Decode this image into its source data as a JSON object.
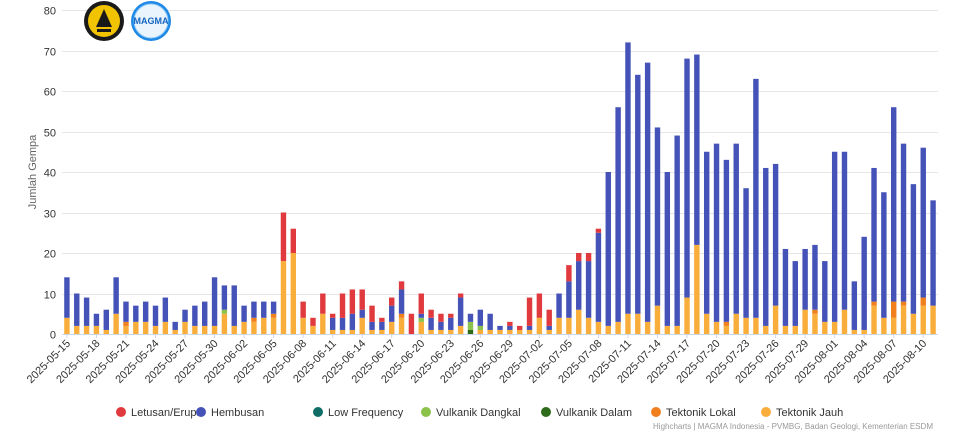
{
  "chart_data": {
    "type": "bar",
    "stacked": true,
    "ylabel": "Jumlah Gempa",
    "ylim": [
      0,
      80
    ],
    "yticks": [
      0,
      10,
      20,
      30,
      40,
      50,
      60,
      70,
      80
    ],
    "grid": true,
    "legend_position": "bottom",
    "logos": [
      "Badan Geologi logo",
      "MAGMA Indonesia logo"
    ],
    "logo_text": "MAGMA",
    "credit": "Highcharts | MAGMA Indonesia - PVMBG, Badan Geologi, Kementerian ESDM",
    "tick_labels": [
      "2025-05-15",
      "2025-05-18",
      "2025-05-21",
      "2025-05-24",
      "2025-05-27",
      "2025-05-30",
      "2025-06-02",
      "2025-06-05",
      "2025-06-08",
      "2025-06-11",
      "2025-06-14",
      "2025-06-17",
      "2025-06-20",
      "2025-06-23",
      "2025-06-26",
      "2025-06-29",
      "2025-07-02",
      "2025-07-05",
      "2025-07-08",
      "2025-07-11",
      "2025-07-14",
      "2025-07-17",
      "2025-07-20",
      "2025-07-23",
      "2025-07-26",
      "2025-07-29",
      "2025-08-01",
      "2025-08-04",
      "2025-08-07",
      "2025-08-10"
    ],
    "categories": [
      "2025-05-15",
      "2025-05-16",
      "2025-05-17",
      "2025-05-18",
      "2025-05-19",
      "2025-05-20",
      "2025-05-21",
      "2025-05-22",
      "2025-05-23",
      "2025-05-24",
      "2025-05-25",
      "2025-05-26",
      "2025-05-27",
      "2025-05-28",
      "2025-05-29",
      "2025-05-30",
      "2025-05-31",
      "2025-06-01",
      "2025-06-02",
      "2025-06-03",
      "2025-06-04",
      "2025-06-05",
      "2025-06-06",
      "2025-06-07",
      "2025-06-08",
      "2025-06-09",
      "2025-06-10",
      "2025-06-11",
      "2025-06-12",
      "2025-06-13",
      "2025-06-14",
      "2025-06-15",
      "2025-06-16",
      "2025-06-17",
      "2025-06-18",
      "2025-06-19",
      "2025-06-20",
      "2025-06-21",
      "2025-06-22",
      "2025-06-23",
      "2025-06-24",
      "2025-06-25",
      "2025-06-26",
      "2025-06-27",
      "2025-06-28",
      "2025-06-29",
      "2025-06-30",
      "2025-07-01",
      "2025-07-02",
      "2025-07-03",
      "2025-07-04",
      "2025-07-05",
      "2025-07-06",
      "2025-07-07",
      "2025-07-08",
      "2025-07-09",
      "2025-07-10",
      "2025-07-11",
      "2025-07-12",
      "2025-07-13",
      "2025-07-14",
      "2025-07-15",
      "2025-07-16",
      "2025-07-17",
      "2025-07-18",
      "2025-07-19",
      "2025-07-20",
      "2025-07-21",
      "2025-07-22",
      "2025-07-23",
      "2025-07-24",
      "2025-07-25",
      "2025-07-26",
      "2025-07-27",
      "2025-07-28",
      "2025-07-29",
      "2025-07-30",
      "2025-07-31",
      "2025-08-01",
      "2025-08-02",
      "2025-08-03",
      "2025-08-04",
      "2025-08-05",
      "2025-08-06",
      "2025-08-07",
      "2025-08-08",
      "2025-08-09",
      "2025-08-10",
      "2025-08-11"
    ],
    "series": [
      {
        "name": "Letusan/Erupsi",
        "color": "#e03a3e",
        "values": [
          0,
          0,
          0,
          0,
          0,
          0,
          0,
          0,
          0,
          0,
          0,
          0,
          0,
          0,
          0,
          0,
          0,
          0,
          0,
          0,
          0,
          0,
          12,
          6,
          4,
          2,
          5,
          1,
          6,
          6,
          5,
          4,
          1,
          2,
          2,
          5,
          5,
          2,
          2,
          1,
          1,
          0,
          0,
          0,
          0,
          1,
          1,
          7,
          6,
          4,
          0,
          4,
          2,
          2,
          1,
          0,
          0,
          0,
          0,
          0,
          0,
          0,
          0,
          0,
          0,
          0,
          0,
          0,
          0,
          0,
          0,
          0,
          0,
          0,
          0,
          0,
          0,
          0,
          0,
          0,
          0,
          0,
          0,
          0,
          0,
          0,
          0,
          0,
          0
        ]
      },
      {
        "name": "Hembusan",
        "color": "#4552b8",
        "values": [
          10,
          8,
          7,
          3,
          5,
          9,
          5,
          4,
          5,
          5,
          6,
          2,
          3,
          5,
          6,
          12,
          6,
          10,
          4,
          4,
          4,
          3,
          0,
          0,
          0,
          0,
          0,
          3,
          3,
          4,
          2,
          2,
          2,
          4,
          6,
          0,
          1,
          3,
          2,
          3,
          7,
          2,
          4,
          4,
          1,
          1,
          0,
          1,
          0,
          1,
          6,
          9,
          12,
          14,
          22,
          38,
          53,
          67,
          59,
          64,
          44,
          38,
          47,
          59,
          47,
          40,
          44,
          40,
          42,
          32,
          59,
          39,
          35,
          19,
          16,
          15,
          16,
          15,
          42,
          39,
          12,
          23,
          33,
          31,
          48,
          39,
          32,
          37,
          26
        ]
      },
      {
        "name": "Low Frequency",
        "color": "#0e6e66",
        "values": [
          0,
          0,
          0,
          0,
          0,
          0,
          0,
          0,
          0,
          0,
          0,
          0,
          0,
          0,
          0,
          0,
          0,
          0,
          0,
          0,
          0,
          0,
          0,
          0,
          0,
          0,
          0,
          0,
          0,
          0,
          0,
          0,
          0,
          0,
          0,
          0,
          0,
          0,
          0,
          0,
          0,
          0,
          0,
          0,
          0,
          0,
          0,
          0,
          0,
          0,
          0,
          0,
          0,
          0,
          0,
          0,
          0,
          0,
          0,
          0,
          0,
          0,
          0,
          0,
          0,
          0,
          0,
          0,
          0,
          0,
          0,
          0,
          0,
          0,
          0,
          0,
          0,
          0,
          0,
          0,
          0,
          0,
          0,
          0,
          0,
          0,
          0,
          0,
          0
        ]
      },
      {
        "name": "Vulkanik Dangkal",
        "color": "#8bc34a",
        "values": [
          0,
          0,
          0,
          0,
          0,
          0,
          0,
          0,
          0,
          0,
          0,
          0,
          0,
          0,
          0,
          0,
          1,
          0,
          0,
          0,
          0,
          0,
          0,
          0,
          0,
          0,
          0,
          0,
          0,
          0,
          0,
          0,
          0,
          0,
          0,
          0,
          1,
          0,
          0,
          0,
          0,
          2,
          1,
          0,
          0,
          0,
          0,
          0,
          0,
          0,
          0,
          0,
          0,
          0,
          0,
          0,
          0,
          0,
          0,
          0,
          0,
          0,
          0,
          0,
          0,
          0,
          0,
          0,
          0,
          0,
          0,
          0,
          0,
          0,
          0,
          0,
          0,
          0,
          0,
          0,
          0,
          0,
          0,
          0,
          0,
          0,
          0,
          0,
          0
        ]
      },
      {
        "name": "Vulkanik Dalam",
        "color": "#2e6b1a",
        "values": [
          0,
          0,
          0,
          0,
          0,
          0,
          0,
          0,
          0,
          0,
          0,
          0,
          0,
          0,
          0,
          0,
          0,
          0,
          0,
          0,
          0,
          0,
          0,
          0,
          0,
          0,
          0,
          0,
          0,
          0,
          0,
          0,
          0,
          0,
          0,
          0,
          0,
          0,
          0,
          0,
          0,
          1,
          0,
          0,
          0,
          0,
          0,
          0,
          0,
          0,
          0,
          0,
          0,
          0,
          0,
          0,
          0,
          0,
          0,
          0,
          0,
          0,
          0,
          0,
          0,
          0,
          0,
          0,
          0,
          0,
          0,
          0,
          0,
          0,
          0,
          0,
          0,
          0,
          0,
          0,
          0,
          0,
          0,
          0,
          0,
          0,
          0,
          0,
          0
        ]
      },
      {
        "name": "Tektonik Lokal",
        "color": "#f07f1e",
        "values": [
          0,
          0,
          0,
          0,
          0,
          0,
          1,
          0,
          0,
          0,
          0,
          0,
          0,
          0,
          0,
          0,
          0,
          0,
          0,
          1,
          0,
          1,
          0,
          0,
          0,
          0,
          0,
          0,
          0,
          0,
          0,
          0,
          0,
          0,
          1,
          0,
          0,
          0,
          0,
          0,
          0,
          0,
          0,
          0,
          0,
          0,
          0,
          0,
          0,
          0,
          0,
          0,
          0,
          0,
          0,
          0,
          0,
          0,
          0,
          0,
          0,
          0,
          0,
          0,
          0,
          0,
          0,
          1,
          0,
          0,
          0,
          0,
          0,
          0,
          0,
          0,
          1,
          0,
          0,
          0,
          0,
          0,
          1,
          0,
          4,
          1,
          0,
          2,
          0
        ]
      },
      {
        "name": "Tektonik Jauh",
        "color": "#f9ad3a",
        "values": [
          4,
          2,
          2,
          2,
          1,
          5,
          2,
          3,
          3,
          2,
          3,
          1,
          3,
          2,
          2,
          2,
          5,
          2,
          3,
          3,
          4,
          4,
          18,
          20,
          4,
          2,
          5,
          1,
          1,
          1,
          4,
          1,
          1,
          3,
          4,
          0,
          3,
          1,
          1,
          1,
          2,
          0,
          1,
          1,
          1,
          1,
          1,
          1,
          4,
          1,
          4,
          4,
          6,
          4,
          3,
          2,
          3,
          5,
          5,
          3,
          7,
          2,
          2,
          9,
          22,
          5,
          3,
          2,
          5,
          4,
          4,
          2,
          7,
          2,
          2,
          6,
          5,
          3,
          3,
          6,
          1,
          1,
          7,
          4,
          4,
          7,
          5,
          7,
          7
        ]
      }
    ]
  }
}
